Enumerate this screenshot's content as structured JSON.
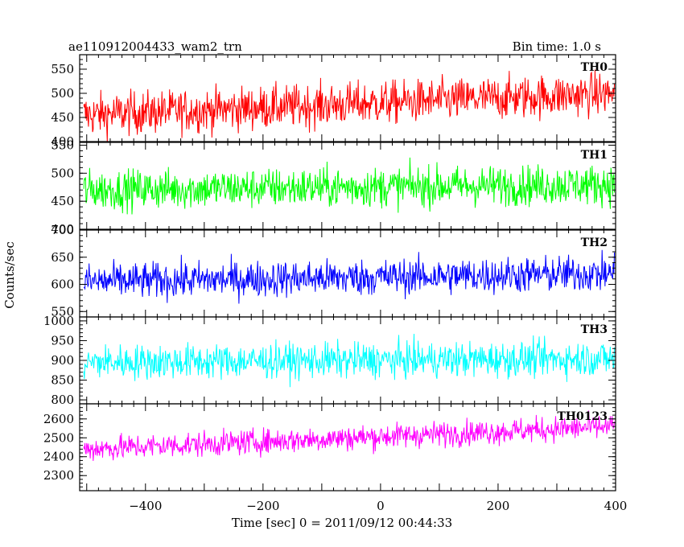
{
  "chart_data": {
    "type": "line",
    "title": "ae110912004433_wam2_trn",
    "bin_time": "Bin time: 1.0 s",
    "xlabel": "Time [sec] 0 = 2011/09/12 00:44:33",
    "ylabel": "Counts/sec",
    "xlim": [
      -512,
      400
    ],
    "x_ticks": [
      -400,
      -200,
      0,
      200,
      400
    ],
    "x_tick_labels": [
      "−400",
      "−200",
      "0",
      "200",
      "400"
    ],
    "panels": [
      {
        "name": "TH0",
        "color": "#ff0000",
        "ylim": [
          400,
          580
        ],
        "y_ticks": [
          400,
          450,
          500,
          550
        ],
        "y_tick_labels": [
          "400",
          "450",
          "500",
          "550"
        ],
        "trend": [
          455,
          500
        ],
        "amplitude": 40,
        "x_range": [
          -505,
          398
        ]
      },
      {
        "name": "TH1",
        "color": "#00ff00",
        "ylim": [
          400,
          555
        ],
        "y_ticks": [
          400,
          450,
          500,
          550
        ],
        "y_tick_labels": [
          "400",
          "450",
          "500",
          "550"
        ],
        "trend": [
          470,
          480
        ],
        "amplitude": 32,
        "x_range": [
          -505,
          398
        ]
      },
      {
        "name": "TH2",
        "color": "#0000ff",
        "ylim": [
          540,
          700
        ],
        "y_ticks": [
          550,
          600,
          650,
          700
        ],
        "y_tick_labels": [
          "550",
          "600",
          "650",
          "700"
        ],
        "trend": [
          605,
          620
        ],
        "amplitude": 30,
        "x_range": [
          -505,
          398
        ]
      },
      {
        "name": "TH3",
        "color": "#00ffff",
        "ylim": [
          790,
          1010
        ],
        "y_ticks": [
          800,
          850,
          900,
          950,
          1000
        ],
        "y_tick_labels": [
          "800",
          "850",
          "900",
          "950",
          "1000"
        ],
        "trend": [
          895,
          905
        ],
        "amplitude": 40,
        "x_range": [
          -505,
          398
        ]
      },
      {
        "name": "TH0123",
        "color": "#ff00ff",
        "ylim": [
          2220,
          2680
        ],
        "y_ticks": [
          2300,
          2400,
          2500,
          2600
        ],
        "y_tick_labels": [
          "2300",
          "2400",
          "2500",
          "2600"
        ],
        "trend": [
          2440,
          2560
        ],
        "amplitude": 60,
        "x_range": [
          -505,
          398
        ]
      }
    ]
  }
}
